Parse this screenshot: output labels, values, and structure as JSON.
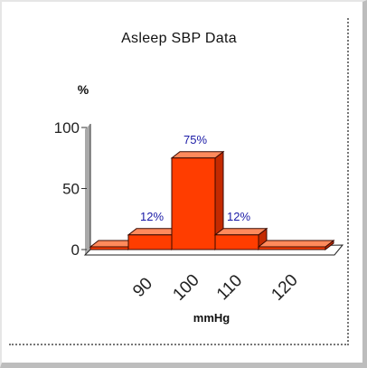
{
  "chart_data": {
    "type": "bar",
    "title": "Asleep SBP Data",
    "ylabel": "%",
    "xlabel": "mmHg",
    "categories": [
      "",
      "90",
      "100",
      "110",
      "120"
    ],
    "values": [
      0,
      12,
      75,
      12,
      0
    ],
    "data_labels": [
      "",
      "12%",
      "75%",
      "12%",
      ""
    ],
    "y_ticks": [
      "0",
      "50",
      "100"
    ],
    "ylim": [
      0,
      100
    ],
    "grid": false,
    "three_d": true,
    "colors": {
      "bar_front": "#ff3d00",
      "bar_top": "#ff8a5c",
      "bar_side": "#c42a00",
      "floor": "#ffffff",
      "wall": "#a9a9a9",
      "data_label": "#1a1aa6"
    }
  }
}
